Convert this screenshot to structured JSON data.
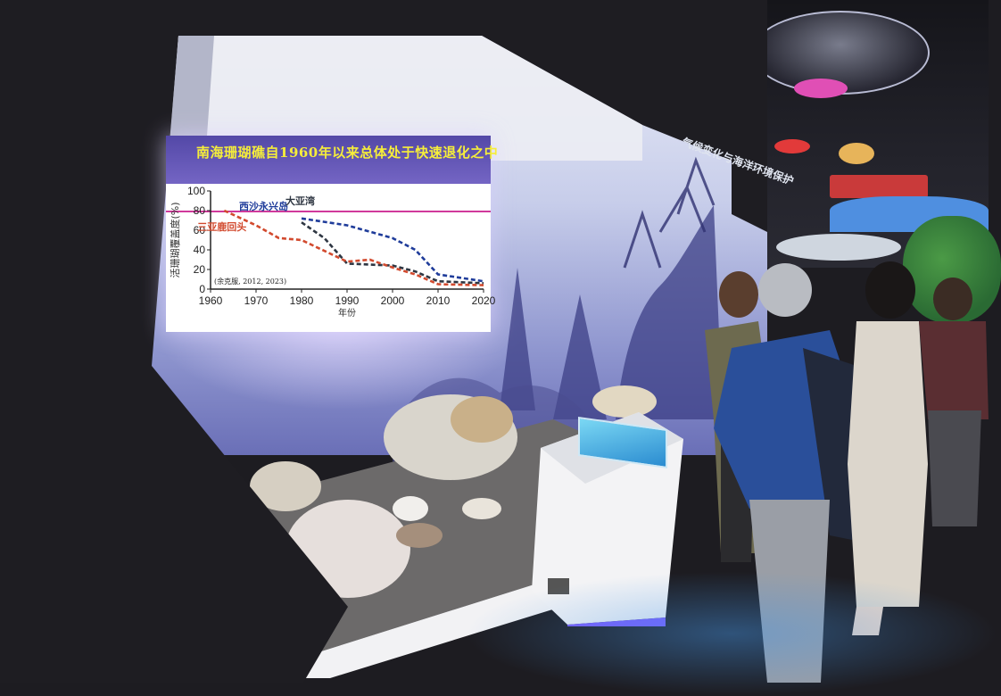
{
  "slide": {
    "title": "南海珊瑚礁自1960年以来总体处于快速退化之中",
    "citation": "(余克服, 2012, 2023)"
  },
  "exhibit_sign": "气候变化与海洋环境保护",
  "chart_data": {
    "type": "line",
    "title": "南海珊瑚礁自1960年以来总体处于快速退化之中",
    "xlabel": "年份",
    "ylabel": "活珊瑚覆盖度(%)",
    "xlim": [
      1960,
      2020
    ],
    "ylim": [
      0,
      100
    ],
    "x_ticks": [
      1960,
      1970,
      1980,
      1990,
      2000,
      2010,
      2020
    ],
    "y_ticks": [
      0,
      20,
      40,
      60,
      80,
      100
    ],
    "series": [
      {
        "name": "西沙永兴岛",
        "color": "#1f3c9a",
        "x": [
          1980,
          1990,
          2000,
          2005,
          2010,
          2020
        ],
        "y": [
          72,
          65,
          52,
          40,
          15,
          8
        ]
      },
      {
        "name": "大亚湾",
        "color": "#2e3642",
        "x": [
          1980,
          1985,
          1990,
          2000,
          2005,
          2010,
          2020
        ],
        "y": [
          68,
          52,
          26,
          24,
          18,
          8,
          6
        ]
      },
      {
        "name": "三亚鹿回头",
        "color": "#d24a2e",
        "x": [
          1963,
          1970,
          1975,
          1980,
          1990,
          1995,
          2000,
          2005,
          2010,
          2020
        ],
        "y": [
          80,
          65,
          52,
          50,
          28,
          30,
          22,
          15,
          5,
          4
        ]
      }
    ],
    "grid": false,
    "legend": "inline labels"
  }
}
